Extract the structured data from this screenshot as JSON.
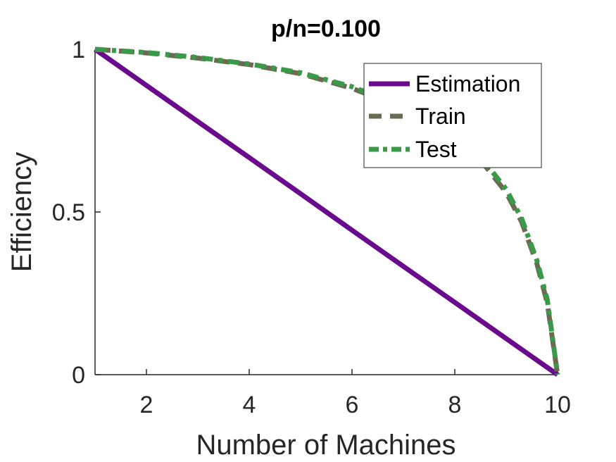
{
  "chart_data": {
    "type": "line",
    "title": "p/n=0.100",
    "xlabel": "Number of Machines",
    "ylabel": "Efficiency",
    "xlim": [
      1,
      10
    ],
    "ylim": [
      0,
      1
    ],
    "xticks": [
      2,
      4,
      6,
      8,
      10
    ],
    "yticks": [
      0,
      0.5,
      1
    ],
    "ytick_labels": [
      "0",
      "0.5",
      "1"
    ],
    "grid": false,
    "legend_position": "top-right",
    "series": [
      {
        "name": "Estimation",
        "color": "#6a0a8c",
        "style": "solid",
        "x": [
          1,
          2,
          3,
          4,
          5,
          6,
          7,
          8,
          9,
          10
        ],
        "y": [
          1.0,
          0.889,
          0.778,
          0.667,
          0.556,
          0.444,
          0.333,
          0.222,
          0.111,
          0.0
        ]
      },
      {
        "name": "Train",
        "color": "#6b6a52",
        "style": "dash",
        "x": [
          1,
          2,
          3,
          4,
          5,
          6,
          7,
          8,
          8.5,
          9,
          9.3,
          9.6,
          9.8,
          10
        ],
        "y": [
          1.0,
          0.989,
          0.973,
          0.953,
          0.925,
          0.88,
          0.82,
          0.73,
          0.66,
          0.56,
          0.47,
          0.34,
          0.22,
          0.0
        ]
      },
      {
        "name": "Test",
        "color": "#3a9a4a",
        "style": "dashdot",
        "x": [
          1,
          2,
          3,
          4,
          5,
          6,
          7,
          8,
          8.5,
          9,
          9.3,
          9.6,
          9.8,
          10
        ],
        "y": [
          1.0,
          0.99,
          0.975,
          0.955,
          0.928,
          0.885,
          0.825,
          0.74,
          0.67,
          0.57,
          0.48,
          0.35,
          0.23,
          0.0
        ]
      }
    ]
  }
}
